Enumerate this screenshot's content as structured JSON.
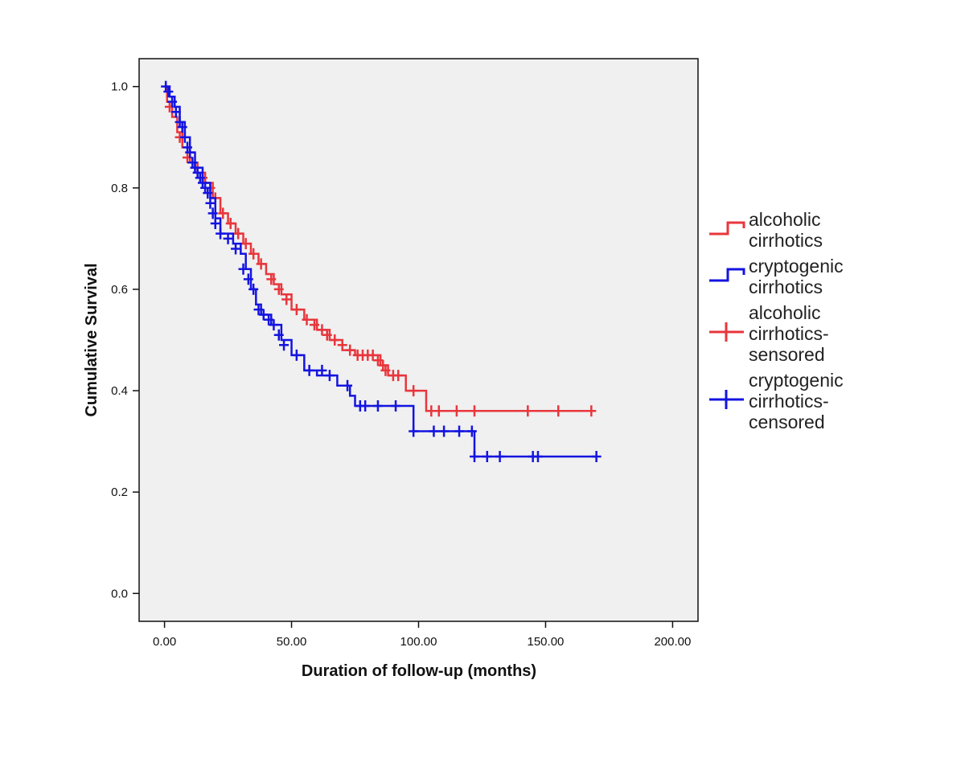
{
  "chart_data": {
    "type": "line",
    "subtype": "kaplan-meier",
    "xlabel": "Duration of follow-up (months)",
    "ylabel": "Cumulative Survival",
    "xlim": [
      -10,
      210
    ],
    "ylim": [
      -0.055,
      1.055
    ],
    "xticks": [
      0,
      50,
      100,
      150,
      200
    ],
    "xtick_labels": [
      "0.00",
      "50.00",
      "100.00",
      "150.00",
      "200.00"
    ],
    "yticks": [
      0.0,
      0.2,
      0.4,
      0.6,
      0.8,
      1.0
    ],
    "ytick_labels": [
      "0.0",
      "0.2",
      "0.4",
      "0.6",
      "0.8",
      "1.0"
    ],
    "grid": false,
    "plot_background": "#f0f0f0",
    "legend_position": "right",
    "legend": [
      {
        "label_lines": [
          "alcoholic",
          "cirrhotics"
        ],
        "color": "#e8363c",
        "marker": "step"
      },
      {
        "label_lines": [
          "cryptogenic",
          "cirrhotics"
        ],
        "color": "#1414e0",
        "marker": "step"
      },
      {
        "label_lines": [
          "alcoholic",
          "cirrhotics-",
          "sensored"
        ],
        "color": "#e8363c",
        "marker": "plus"
      },
      {
        "label_lines": [
          "cryptogenic",
          "cirrhotics-",
          "censored"
        ],
        "color": "#1414e0",
        "marker": "plus"
      }
    ],
    "series": [
      {
        "color": "#e8363c",
        "steps": [
          [
            0,
            1.0
          ],
          [
            1,
            0.97
          ],
          [
            3,
            0.94
          ],
          [
            5,
            0.91
          ],
          [
            7,
            0.88
          ],
          [
            10,
            0.85
          ],
          [
            13,
            0.83
          ],
          [
            16,
            0.81
          ],
          [
            19,
            0.78
          ],
          [
            22,
            0.75
          ],
          [
            25,
            0.73
          ],
          [
            28,
            0.71
          ],
          [
            31,
            0.69
          ],
          [
            34,
            0.67
          ],
          [
            37,
            0.65
          ],
          [
            40,
            0.63
          ],
          [
            43,
            0.61
          ],
          [
            46,
            0.59
          ],
          [
            50,
            0.56
          ],
          [
            55,
            0.54
          ],
          [
            60,
            0.52
          ],
          [
            65,
            0.5
          ],
          [
            70,
            0.48
          ],
          [
            75,
            0.47
          ],
          [
            85,
            0.45
          ],
          [
            88,
            0.43
          ],
          [
            95,
            0.4
          ],
          [
            103,
            0.36
          ],
          [
            168,
            0.36
          ]
        ],
        "censored": [
          [
            2,
            0.96
          ],
          [
            6,
            0.9
          ],
          [
            9,
            0.86
          ],
          [
            12,
            0.84
          ],
          [
            15,
            0.82
          ],
          [
            18,
            0.8
          ],
          [
            20,
            0.78
          ],
          [
            23,
            0.75
          ],
          [
            26,
            0.73
          ],
          [
            29,
            0.71
          ],
          [
            32,
            0.69
          ],
          [
            35,
            0.67
          ],
          [
            38,
            0.65
          ],
          [
            42,
            0.62
          ],
          [
            45,
            0.6
          ],
          [
            48,
            0.58
          ],
          [
            52,
            0.56
          ],
          [
            56,
            0.54
          ],
          [
            59,
            0.53
          ],
          [
            62,
            0.52
          ],
          [
            64,
            0.51
          ],
          [
            67,
            0.5
          ],
          [
            70,
            0.49
          ],
          [
            73,
            0.48
          ],
          [
            76,
            0.47
          ],
          [
            78,
            0.47
          ],
          [
            80,
            0.47
          ],
          [
            82,
            0.47
          ],
          [
            84,
            0.46
          ],
          [
            86,
            0.45
          ],
          [
            87,
            0.44
          ],
          [
            90,
            0.43
          ],
          [
            92,
            0.43
          ],
          [
            98,
            0.4
          ],
          [
            105,
            0.36
          ],
          [
            108,
            0.36
          ],
          [
            115,
            0.36
          ],
          [
            122,
            0.36
          ],
          [
            143,
            0.36
          ],
          [
            155,
            0.36
          ],
          [
            168,
            0.36
          ]
        ]
      },
      {
        "color": "#1414e0",
        "steps": [
          [
            0,
            1.0
          ],
          [
            2,
            0.98
          ],
          [
            4,
            0.96
          ],
          [
            6,
            0.93
          ],
          [
            8,
            0.9
          ],
          [
            10,
            0.87
          ],
          [
            12,
            0.84
          ],
          [
            15,
            0.81
          ],
          [
            18,
            0.78
          ],
          [
            20,
            0.74
          ],
          [
            22,
            0.71
          ],
          [
            27,
            0.69
          ],
          [
            30,
            0.67
          ],
          [
            32,
            0.64
          ],
          [
            34,
            0.6
          ],
          [
            36,
            0.57
          ],
          [
            38,
            0.55
          ],
          [
            42,
            0.53
          ],
          [
            46,
            0.5
          ],
          [
            50,
            0.47
          ],
          [
            55,
            0.44
          ],
          [
            60,
            0.43
          ],
          [
            68,
            0.41
          ],
          [
            73,
            0.39
          ],
          [
            75,
            0.37
          ],
          [
            98,
            0.32
          ],
          [
            122,
            0.27
          ],
          [
            170,
            0.27
          ]
        ],
        "censored": [
          [
            0.5,
            1.0
          ],
          [
            1.5,
            0.99
          ],
          [
            3,
            0.97
          ],
          [
            4.5,
            0.95
          ],
          [
            6,
            0.93
          ],
          [
            7,
            0.92
          ],
          [
            8,
            0.9
          ],
          [
            9,
            0.88
          ],
          [
            10,
            0.87
          ],
          [
            11,
            0.85
          ],
          [
            12,
            0.84
          ],
          [
            13,
            0.83
          ],
          [
            14,
            0.82
          ],
          [
            15,
            0.81
          ],
          [
            16,
            0.8
          ],
          [
            17,
            0.79
          ],
          [
            18,
            0.77
          ],
          [
            19,
            0.75
          ],
          [
            20,
            0.73
          ],
          [
            22,
            0.71
          ],
          [
            25,
            0.7
          ],
          [
            28,
            0.68
          ],
          [
            31,
            0.64
          ],
          [
            33,
            0.62
          ],
          [
            35,
            0.6
          ],
          [
            37,
            0.56
          ],
          [
            39,
            0.55
          ],
          [
            41,
            0.54
          ],
          [
            43,
            0.53
          ],
          [
            45,
            0.51
          ],
          [
            47,
            0.49
          ],
          [
            52,
            0.47
          ],
          [
            57,
            0.44
          ],
          [
            62,
            0.44
          ],
          [
            65,
            0.43
          ],
          [
            72,
            0.41
          ],
          [
            77,
            0.37
          ],
          [
            79,
            0.37
          ],
          [
            84,
            0.37
          ],
          [
            91,
            0.37
          ],
          [
            98,
            0.32
          ],
          [
            106,
            0.32
          ],
          [
            110,
            0.32
          ],
          [
            116,
            0.32
          ],
          [
            121,
            0.32
          ],
          [
            122,
            0.27
          ],
          [
            127,
            0.27
          ],
          [
            132,
            0.27
          ],
          [
            145,
            0.27
          ],
          [
            147,
            0.27
          ],
          [
            170,
            0.27
          ]
        ]
      }
    ]
  }
}
